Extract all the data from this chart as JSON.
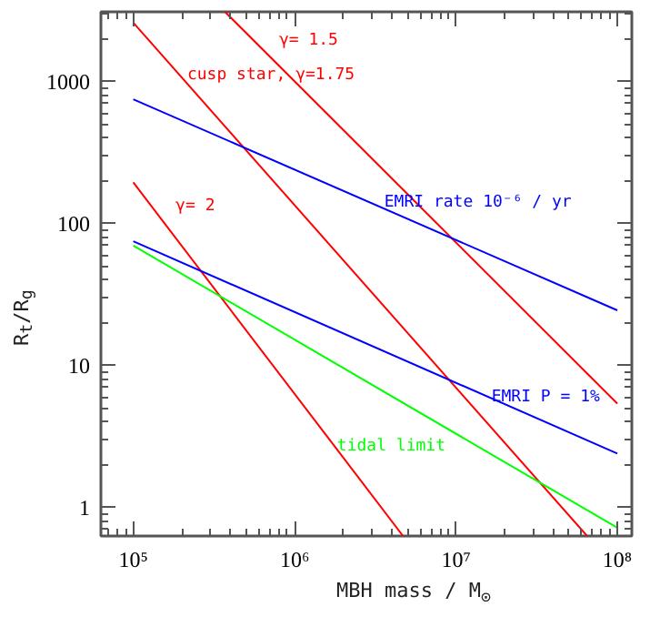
{
  "chart_data": {
    "type": "line",
    "xlabel": "MBH mass / M$_{⊙}$",
    "ylabel": "R$_{t}$/R$_{g}$",
    "log": "xy",
    "xlim": [
      63000,
      123000000
    ],
    "ylim": [
      0.63,
      3100
    ],
    "xticks": [
      {
        "value": 100000,
        "label": "10⁵"
      },
      {
        "value": 1000000,
        "label": "10⁶"
      },
      {
        "value": 10000000,
        "label": "10⁷"
      },
      {
        "value": 100000000,
        "label": "10⁸"
      }
    ],
    "yticks": [
      1,
      10,
      100,
      1000
    ],
    "grid": false,
    "marker": "none",
    "line_style": "solid",
    "series": [
      {
        "name": "γ= 1.5",
        "color": "#ff0000",
        "x": [
          370000,
          100000000
        ],
        "values": [
          3100,
          5.4
        ]
      },
      {
        "name": "cusp star, γ=1.75",
        "color": "#ff0000",
        "x": [
          100000,
          65000000
        ],
        "values": [
          2600,
          0.63
        ]
      },
      {
        "name": "γ= 2",
        "color": "#ff0000",
        "x": [
          100000,
          4700000
        ],
        "values": [
          195,
          0.63
        ]
      },
      {
        "name": "EMRI rate 10⁻⁶ / yr",
        "color": "#0000ff",
        "x": [
          100000,
          100000000
        ],
        "values": [
          750,
          24.5
        ]
      },
      {
        "name": "EMRI P = 1%",
        "color": "#0000ff",
        "x": [
          100000,
          100000000
        ],
        "values": [
          75,
          2.4
        ]
      },
      {
        "name": "tidal limit",
        "color": "#00ff00",
        "x": [
          100000,
          100000000
        ],
        "values": [
          70,
          0.72
        ]
      }
    ]
  }
}
